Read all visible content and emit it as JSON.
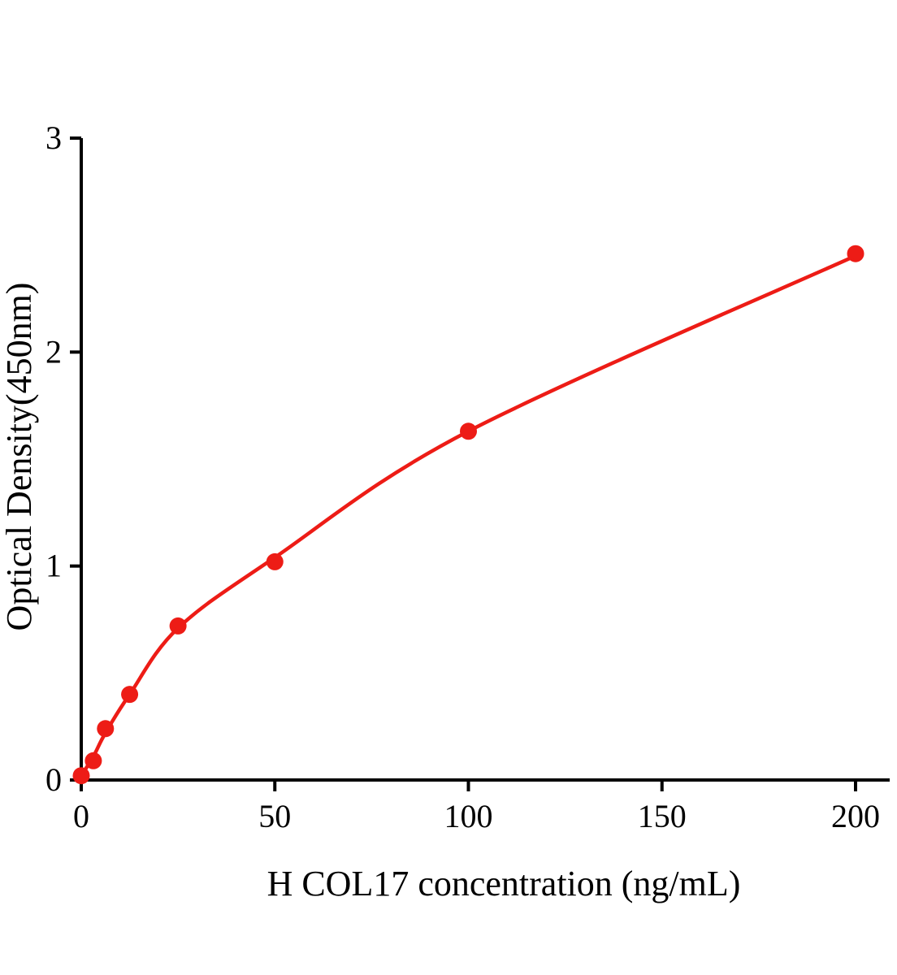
{
  "chart_data": {
    "type": "scatter",
    "title": "",
    "xlabel": "H COL17 concentration (ng/mL)",
    "ylabel": "Optical Density(450nm)",
    "xlim": [
      0,
      209
    ],
    "ylim": [
      0,
      3
    ],
    "xticks": [
      0,
      50,
      100,
      150,
      200
    ],
    "yticks": [
      0,
      1,
      2,
      3
    ],
    "grid": false,
    "legend_position": "none",
    "point_color": "#ed1c16",
    "line_color": "#ed1c16",
    "axis_color": "#000000",
    "series": [
      {
        "name": "standard-points",
        "type": "scatter",
        "x": [
          0,
          3.125,
          6.25,
          12.5,
          25,
          50,
          100,
          200
        ],
        "y": [
          0.02,
          0.09,
          0.24,
          0.4,
          0.72,
          1.02,
          1.63,
          2.46
        ]
      },
      {
        "name": "fit-curve",
        "type": "line",
        "x": [
          0,
          3.125,
          6.25,
          12.5,
          25,
          50,
          100,
          200
        ],
        "y": [
          0.02,
          0.11,
          0.22,
          0.4,
          0.71,
          1.04,
          1.63,
          2.45
        ]
      }
    ]
  }
}
